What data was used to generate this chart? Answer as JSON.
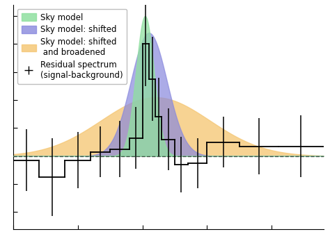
{
  "background_color": "#ffffff",
  "sky_model_color": "#90e0a0",
  "sky_shifted_color": "#8888dd",
  "sky_broadened_color": "#f5c878",
  "hist_color": "#000000",
  "sky_mu": 0.2,
  "sky_sigma": 0.7,
  "sky_amp": 1.0,
  "shift_mu": 0.5,
  "shift_sigma": 1.4,
  "shift_amp": 0.88,
  "broad_mu": 1.0,
  "broad_sigma": 4.2,
  "broad_amp": 0.42,
  "bin_edges": [
    -10,
    -8,
    -6,
    -4,
    -2.5,
    -1.0,
    0.0,
    0.5,
    1.0,
    1.5,
    2.5,
    3.5,
    5.0,
    7.5,
    10.5,
    14.0
  ],
  "hist_vals": [
    -0.03,
    -0.15,
    -0.03,
    0.03,
    0.05,
    0.13,
    0.8,
    0.55,
    0.28,
    0.12,
    -0.06,
    -0.05,
    0.1,
    0.07,
    0.07
  ],
  "hist_errors": [
    0.22,
    0.28,
    0.2,
    0.18,
    0.2,
    0.22,
    0.3,
    0.3,
    0.28,
    0.22,
    0.2,
    0.18,
    0.18,
    0.2,
    0.22
  ],
  "xlim": [
    -10,
    14
  ],
  "ylim": [
    -0.52,
    1.08
  ]
}
